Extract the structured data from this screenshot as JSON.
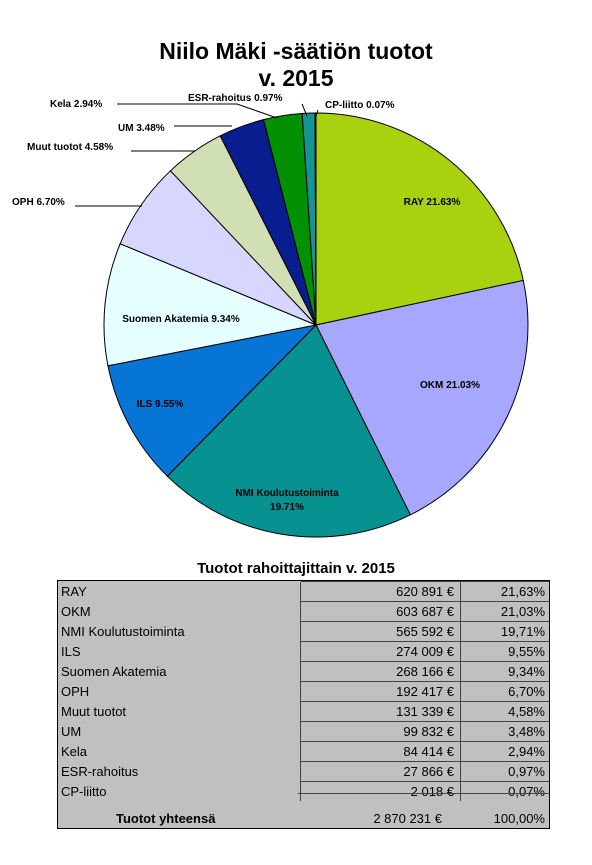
{
  "chart_data": {
    "type": "pie",
    "title_line1": "Niilo Mäki -säätiön tuotot",
    "title_line2": "v. 2015",
    "slices": [
      {
        "label": "RAY 21.63%",
        "value": 21.63,
        "color": "#a9d10f"
      },
      {
        "label": "OKM 21.03%",
        "value": 21.03,
        "color": "#a7a7ff"
      },
      {
        "label": "NMI Koulutustoiminta|19.71%",
        "value": 19.71,
        "color": "#079191"
      },
      {
        "label": "ILS 9.55%",
        "value": 9.55,
        "color": "#0675d5"
      },
      {
        "label": "Suomen Akatemia 9.34%",
        "value": 9.34,
        "color": "#e6ffff"
      },
      {
        "label": "OPH 6.70%",
        "value": 6.7,
        "color": "#d6d6ff"
      },
      {
        "label": "Muut tuotot 4.58%",
        "value": 4.58,
        "color": "#d1e0b4"
      },
      {
        "label": "UM 3.48%",
        "value": 3.48,
        "color": "#0a1d8e"
      },
      {
        "label": "Kela 2.94%",
        "value": 2.94,
        "color": "#039003"
      },
      {
        "label": "ESR-rahoitus 0.97%",
        "value": 0.97,
        "color": "#149494"
      },
      {
        "label": "CP-liitto 0.07%",
        "value": 0.07,
        "color": "#10ab10"
      }
    ]
  },
  "table": {
    "title": "Tuotot rahoittajittain v. 2015",
    "rows": [
      {
        "name": "RAY",
        "amount": "620 891 €",
        "pct": "21,63%"
      },
      {
        "name": "OKM",
        "amount": "603 687 €",
        "pct": "21,03%"
      },
      {
        "name": "NMI Koulutustoiminta",
        "amount": "565 592 €",
        "pct": "19,71%"
      },
      {
        "name": "ILS",
        "amount": "274 009 €",
        "pct": "9,55%"
      },
      {
        "name": "Suomen Akatemia",
        "amount": "268 166 €",
        "pct": "9,34%"
      },
      {
        "name": "OPH",
        "amount": "192 417 €",
        "pct": "6,70%"
      },
      {
        "name": "Muut tuotot",
        "amount": "131 339 €",
        "pct": "4,58%"
      },
      {
        "name": "UM",
        "amount": "99 832 €",
        "pct": "3,48%"
      },
      {
        "name": "Kela",
        "amount": "84 414 €",
        "pct": "2,94%"
      },
      {
        "name": "ESR-rahoitus",
        "amount": "27 866 €",
        "pct": "0,97%"
      },
      {
        "name": "CP-liitto",
        "amount": "2 018 €",
        "pct": "0,07%"
      }
    ],
    "total_label": "Tuotot yhteensä",
    "total_amount": "2 870 231 €",
    "total_pct": "100,00%"
  }
}
